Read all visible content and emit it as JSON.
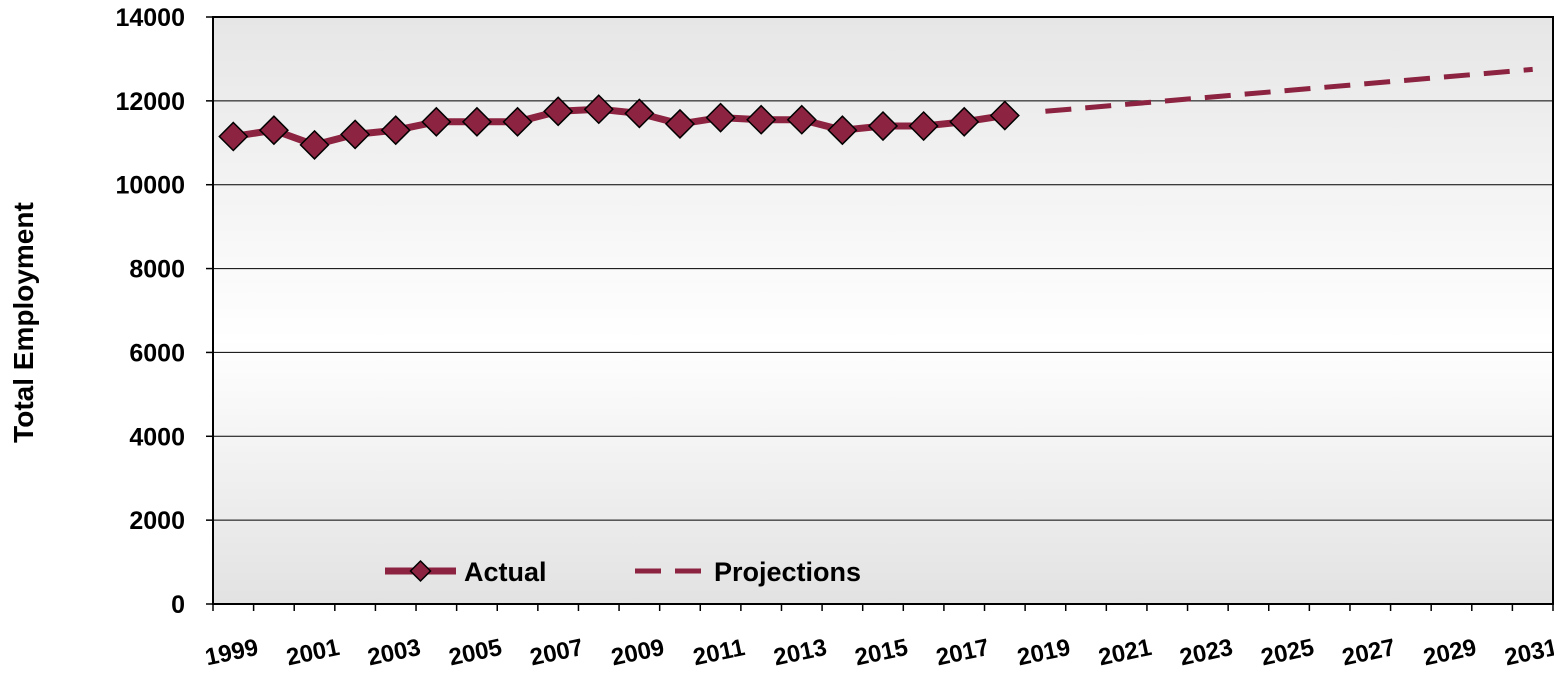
{
  "chart_data": {
    "type": "line",
    "title": "",
    "ylabel": "Total Employment",
    "xlabel": "",
    "ylim": [
      0,
      14000
    ],
    "xlim": [
      1999,
      2031
    ],
    "y_ticks": [
      0,
      2000,
      4000,
      6000,
      8000,
      10000,
      12000,
      14000
    ],
    "x_tick_labels": [
      "1999",
      "2001",
      "2003",
      "2005",
      "2007",
      "2009",
      "2011",
      "2013",
      "2015",
      "2017",
      "2019",
      "2021",
      "2023",
      "2025",
      "2027",
      "2029",
      "2031"
    ],
    "grid": true,
    "legend_position": "bottom-left",
    "series": [
      {
        "name": "Actual",
        "style": "solid-with-diamond-markers",
        "color": "#8c2340",
        "x": [
          1999,
          2000,
          2001,
          2002,
          2003,
          2004,
          2005,
          2006,
          2007,
          2008,
          2009,
          2010,
          2011,
          2012,
          2013,
          2014,
          2015,
          2016,
          2017,
          2018
        ],
        "values": [
          11150,
          11300,
          10950,
          11200,
          11300,
          11500,
          11500,
          11500,
          11750,
          11800,
          11700,
          11450,
          11600,
          11550,
          11550,
          11300,
          11400,
          11400,
          11500,
          11650
        ]
      },
      {
        "name": "Projections",
        "style": "dashed",
        "color": "#8c2340",
        "x": [
          2019,
          2031
        ],
        "values": [
          11750,
          12750
        ]
      }
    ]
  }
}
